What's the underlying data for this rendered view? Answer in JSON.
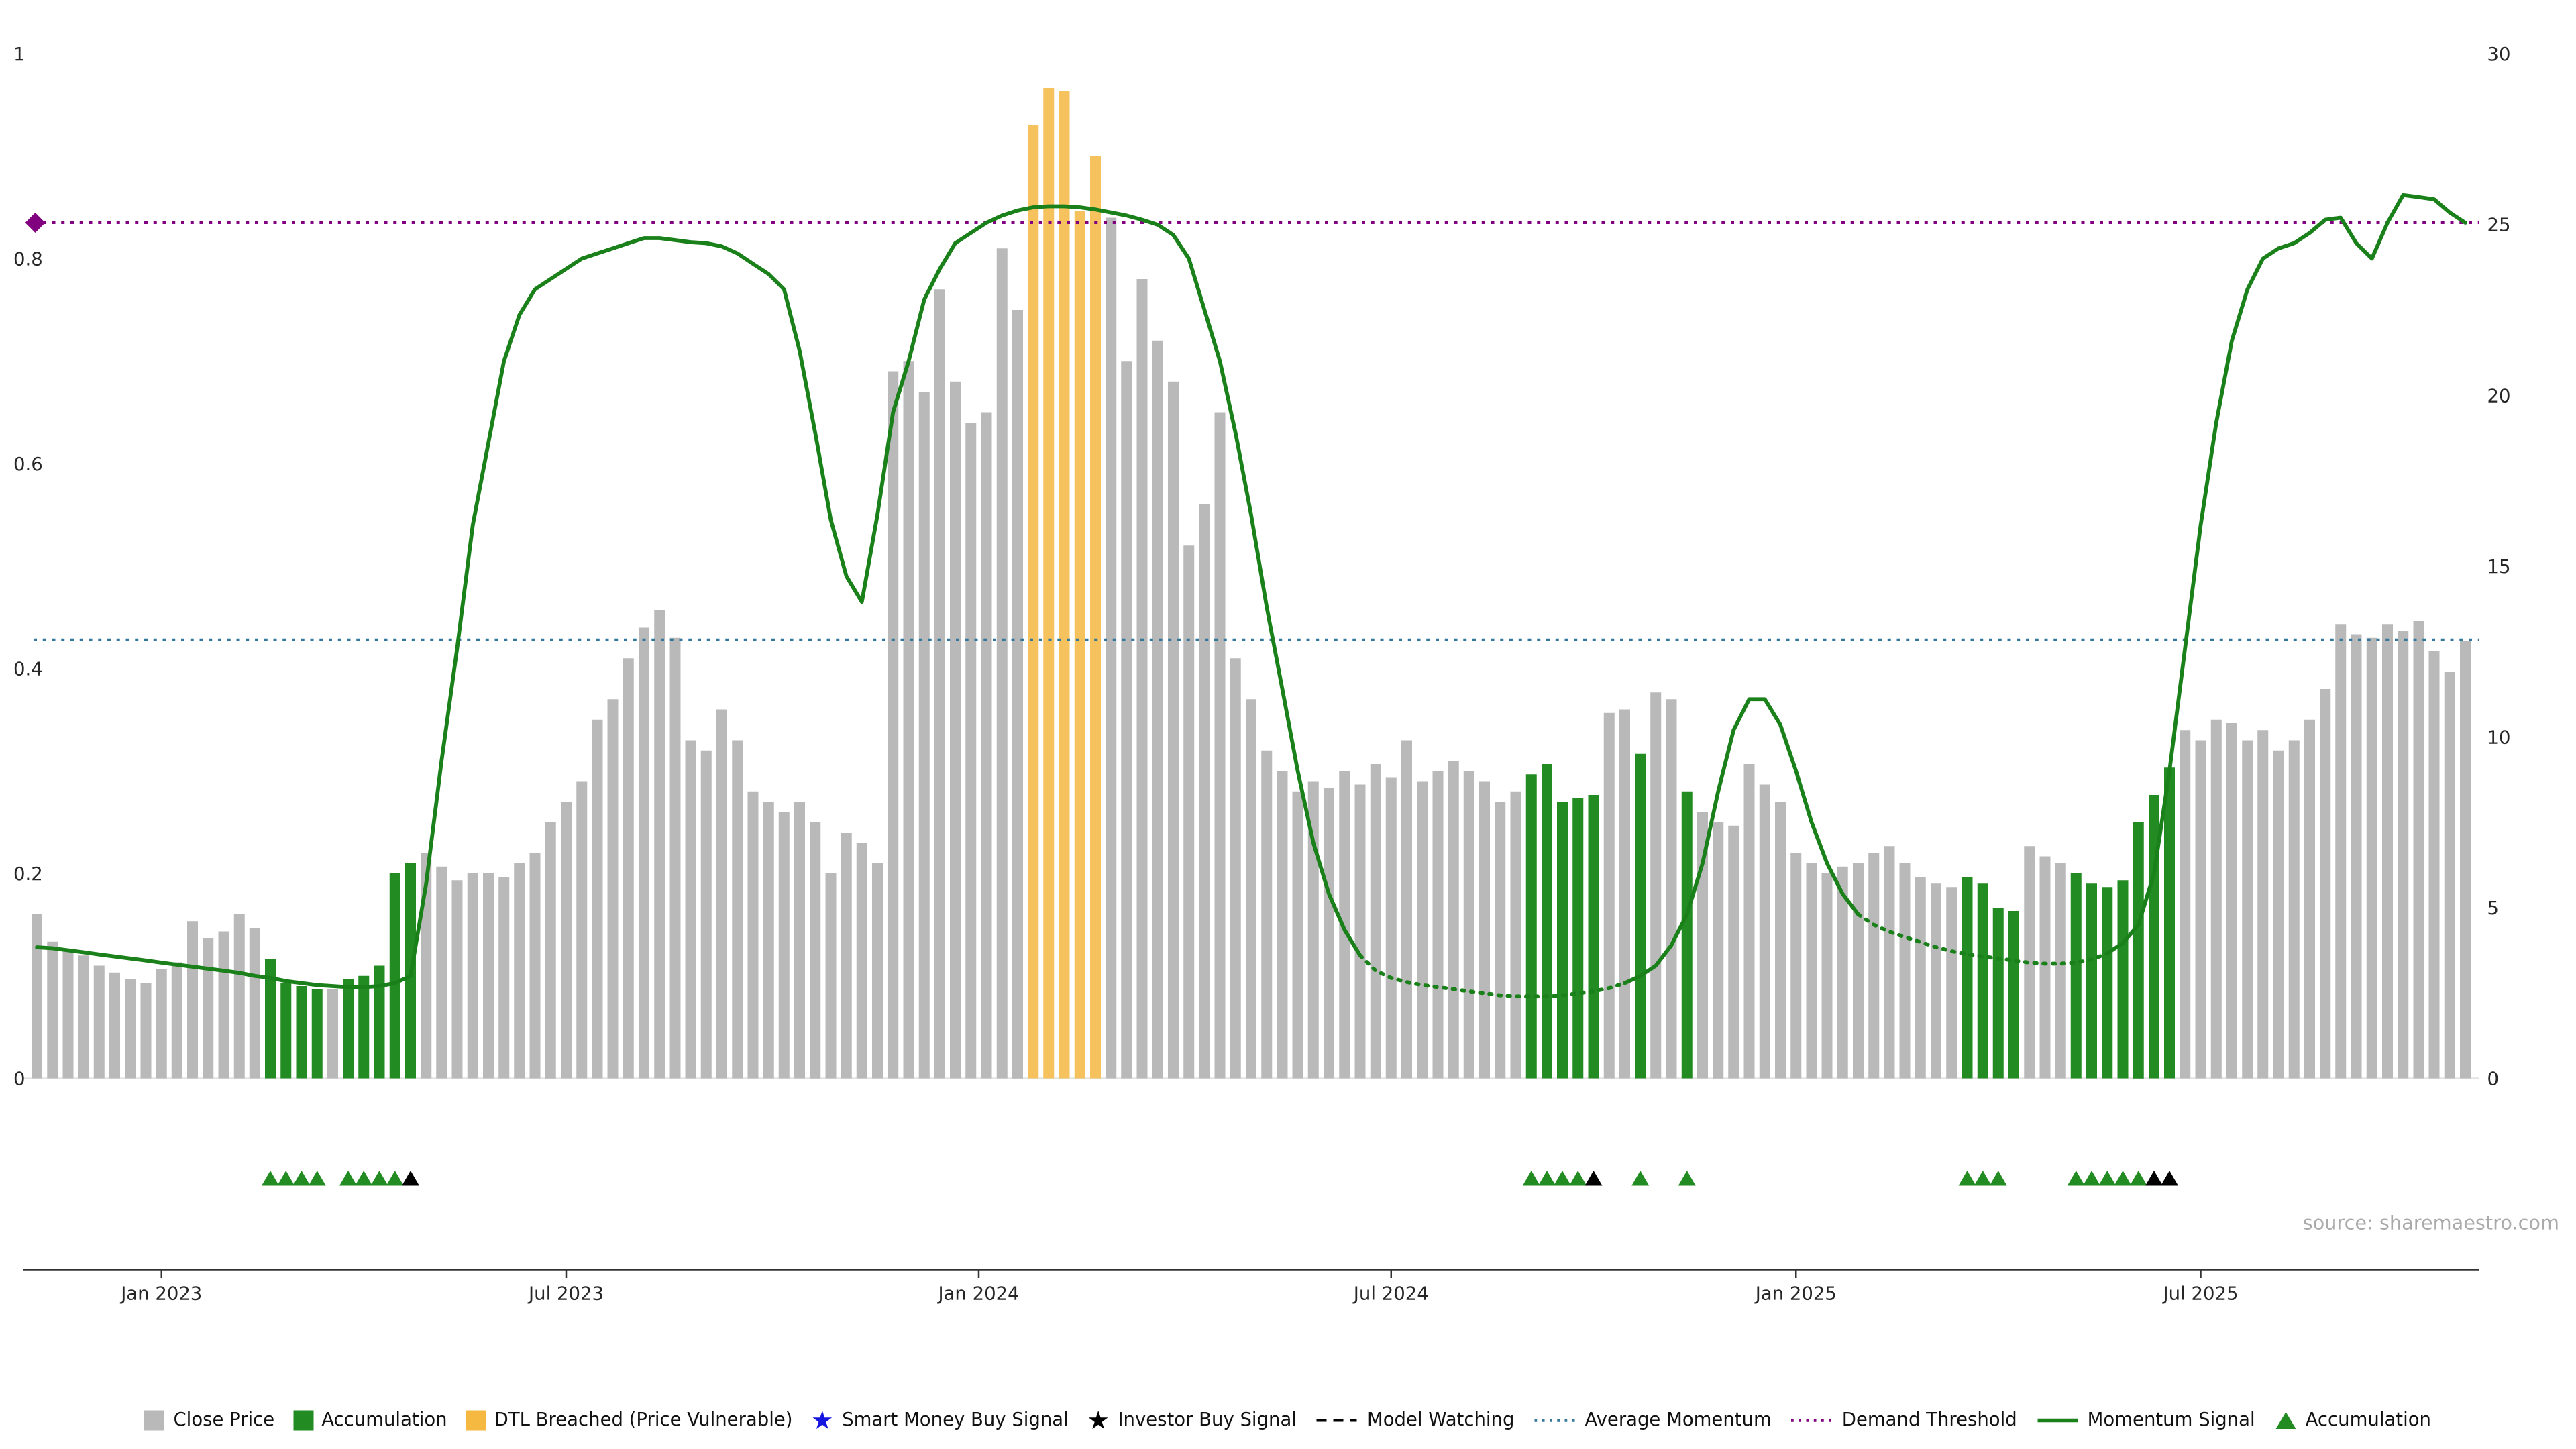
{
  "chart_data": {
    "type": "bar",
    "title": "",
    "x_unit": "weekly bars, Nov 2022 - Nov 2025",
    "left_axis": {
      "range": [
        0,
        1
      ],
      "ticks": [
        {
          "v": 0,
          "label": "0"
        },
        {
          "v": 0.2,
          "label": "0.2"
        },
        {
          "v": 0.4,
          "label": "0.4"
        },
        {
          "v": 0.6,
          "label": "0.6"
        },
        {
          "v": 0.8,
          "label": "0.8"
        },
        {
          "v": 1,
          "label": "1"
        }
      ]
    },
    "right_axis": {
      "range": [
        0,
        30
      ],
      "max": 30,
      "ticks": [
        {
          "v": 0,
          "label": "0"
        },
        {
          "v": 5,
          "label": "5"
        },
        {
          "v": 10,
          "label": "10"
        },
        {
          "v": 15,
          "label": "15"
        },
        {
          "v": 20,
          "label": "20"
        },
        {
          "v": 25,
          "label": "25"
        },
        {
          "v": 30,
          "label": "30"
        }
      ]
    },
    "x_ticks": [
      {
        "pos": 8,
        "label": "Jan 2023"
      },
      {
        "pos": 34,
        "label": "Jul 2023"
      },
      {
        "pos": 60.5,
        "label": "Jan 2024"
      },
      {
        "pos": 87,
        "label": "Jul 2024"
      },
      {
        "pos": 113,
        "label": "Jan 2025"
      },
      {
        "pos": 139,
        "label": "Jul 2025"
      }
    ],
    "bar_colors": {
      "g": "#b9b9b9",
      "a": "#228B22",
      "d": "#f6c25e"
    },
    "series_bars": {
      "name": "Close Price",
      "axis": "right",
      "values": [
        4.8,
        4.0,
        3.8,
        3.6,
        3.3,
        3.1,
        2.9,
        2.8,
        3.2,
        3.4,
        4.6,
        4.1,
        4.3,
        4.8,
        4.4,
        3.5,
        2.8,
        2.7,
        2.6,
        2.6,
        2.9,
        3.0,
        3.3,
        6.0,
        6.3,
        6.6,
        6.2,
        5.8,
        6.0,
        6.0,
        5.9,
        6.3,
        6.6,
        7.5,
        8.1,
        8.7,
        10.5,
        11.1,
        12.3,
        13.2,
        13.7,
        12.9,
        9.9,
        9.6,
        10.8,
        9.9,
        8.4,
        8.1,
        7.8,
        8.1,
        7.5,
        6.0,
        7.2,
        6.9,
        6.3,
        20.7,
        21.0,
        20.1,
        23.1,
        20.4,
        19.2,
        19.5,
        24.3,
        22.5,
        27.9,
        29.0,
        28.9,
        25.4,
        27.0,
        25.2,
        21.0,
        23.4,
        21.6,
        20.4,
        15.6,
        16.8,
        19.5,
        12.3,
        11.1,
        9.6,
        9.0,
        8.4,
        8.7,
        8.5,
        9.0,
        8.6,
        9.2,
        8.8,
        9.9,
        8.7,
        9.0,
        9.3,
        9.0,
        8.7,
        8.1,
        8.4,
        8.9,
        9.2,
        8.1,
        8.2,
        8.3,
        10.7,
        10.8,
        9.5,
        11.3,
        11.1,
        8.4,
        7.8,
        7.5,
        7.4,
        9.2,
        8.6,
        8.1,
        6.6,
        6.3,
        6.0,
        6.2,
        6.3,
        6.6,
        6.8,
        6.3,
        5.9,
        5.7,
        5.6,
        5.9,
        5.7,
        5.0,
        4.9,
        6.8,
        6.5,
        6.3,
        6.0,
        5.7,
        5.6,
        5.8,
        7.5,
        8.3,
        9.1,
        10.2,
        9.9,
        10.5,
        10.4,
        9.9,
        10.2,
        9.6,
        9.9,
        10.5,
        11.4,
        13.3,
        13.0,
        12.9,
        13.3,
        13.1,
        13.4,
        12.5,
        11.9,
        12.8
      ],
      "color_runs": [
        [
          15,
          "g"
        ],
        [
          4,
          "a"
        ],
        [
          1,
          "g"
        ],
        [
          5,
          "a"
        ],
        [
          39,
          "g"
        ],
        [
          5,
          "d"
        ],
        [
          27,
          "g"
        ],
        [
          5,
          "a"
        ],
        [
          2,
          "g"
        ],
        [
          1,
          "a"
        ],
        [
          2,
          "g"
        ],
        [
          1,
          "a"
        ],
        [
          17,
          "g"
        ],
        [
          4,
          "a"
        ],
        [
          3,
          "g"
        ],
        [
          7,
          "a"
        ],
        [
          19,
          "g"
        ]
      ]
    },
    "series_momentum": {
      "name": "Momentum Signal",
      "axis": "left",
      "color": "#1a801a",
      "model_watching_segments": [
        [
          85,
          102
        ],
        [
          117,
          133
        ]
      ],
      "values": [
        0.128,
        0.127,
        0.125,
        0.123,
        0.121,
        0.119,
        0.117,
        0.115,
        0.113,
        0.111,
        0.109,
        0.107,
        0.105,
        0.103,
        0.1,
        0.098,
        0.095,
        0.093,
        0.091,
        0.09,
        0.089,
        0.089,
        0.09,
        0.093,
        0.1,
        0.19,
        0.31,
        0.42,
        0.54,
        0.62,
        0.7,
        0.745,
        0.77,
        0.78,
        0.79,
        0.8,
        0.805,
        0.81,
        0.815,
        0.82,
        0.82,
        0.818,
        0.816,
        0.815,
        0.812,
        0.805,
        0.795,
        0.785,
        0.77,
        0.71,
        0.63,
        0.545,
        0.49,
        0.465,
        0.55,
        0.65,
        0.7,
        0.76,
        0.79,
        0.815,
        0.825,
        0.835,
        0.842,
        0.847,
        0.85,
        0.851,
        0.851,
        0.85,
        0.848,
        0.845,
        0.842,
        0.838,
        0.833,
        0.823,
        0.8,
        0.75,
        0.7,
        0.63,
        0.55,
        0.46,
        0.38,
        0.3,
        0.23,
        0.18,
        0.145,
        0.12,
        0.105,
        0.098,
        0.094,
        0.091,
        0.089,
        0.087,
        0.085,
        0.083,
        0.081,
        0.08,
        0.08,
        0.08,
        0.081,
        0.083,
        0.085,
        0.088,
        0.093,
        0.1,
        0.11,
        0.13,
        0.16,
        0.21,
        0.28,
        0.34,
        0.37,
        0.37,
        0.345,
        0.3,
        0.25,
        0.21,
        0.18,
        0.16,
        0.15,
        0.143,
        0.138,
        0.133,
        0.128,
        0.124,
        0.121,
        0.119,
        0.117,
        0.115,
        0.113,
        0.112,
        0.112,
        0.113,
        0.116,
        0.122,
        0.132,
        0.15,
        0.2,
        0.3,
        0.42,
        0.54,
        0.64,
        0.72,
        0.77,
        0.8,
        0.81,
        0.815,
        0.825,
        0.838,
        0.84,
        0.815,
        0.8,
        0.835,
        0.862,
        0.86,
        0.858,
        0.845,
        0.835
      ]
    },
    "reference_lines": [
      {
        "name": "Average Momentum",
        "axis": "left",
        "value": 0.428,
        "color": "#32789c",
        "style": "dotted"
      },
      {
        "name": "Demand Threshold",
        "axis": "left",
        "value": 0.835,
        "color": "#800080",
        "style": "dotted",
        "marker": "diamond"
      }
    ],
    "markers": {
      "accumulation_weeks": [
        15,
        16,
        17,
        18,
        20,
        21,
        22,
        23,
        96,
        97,
        98,
        99,
        103,
        106,
        124,
        125,
        126,
        131,
        132,
        133,
        134,
        135
      ],
      "investor_buy_weeks": [
        24,
        100,
        136,
        137
      ],
      "smart_money_weeks": []
    },
    "source": "source: sharemaestro.com"
  },
  "legend": {
    "items": [
      {
        "label": "Close Price",
        "swatch": "square",
        "color": "#b9b9b9",
        "name": "close-price"
      },
      {
        "label": "Accumulation",
        "swatch": "square",
        "color": "#228B22",
        "name": "accumulation"
      },
      {
        "label": "DTL Breached (Price Vulnerable)",
        "swatch": "square",
        "color": "#f5b942",
        "name": "dtl-breached"
      },
      {
        "label": "Smart Money Buy Signal",
        "swatch": "star",
        "color": "#1515e0",
        "name": "smart-money-buy-signal"
      },
      {
        "label": "Investor Buy Signal",
        "swatch": "star",
        "color": "#000000",
        "name": "investor-buy-signal"
      },
      {
        "label": "Model Watching",
        "swatch": "dashed-line",
        "color": "#000000",
        "name": "model-watching"
      },
      {
        "label": "Average Momentum",
        "swatch": "dotted-line",
        "color": "#32789c",
        "name": "average-momentum"
      },
      {
        "label": "Demand Threshold",
        "swatch": "dotted-line",
        "color": "#800080",
        "name": "demand-threshold"
      },
      {
        "label": "Momentum Signal",
        "swatch": "solid-line",
        "color": "#1a801a",
        "name": "momentum-signal"
      },
      {
        "label": "Accumulation",
        "swatch": "triangle",
        "color": "#228B22",
        "name": "accumulation-marker"
      }
    ]
  }
}
